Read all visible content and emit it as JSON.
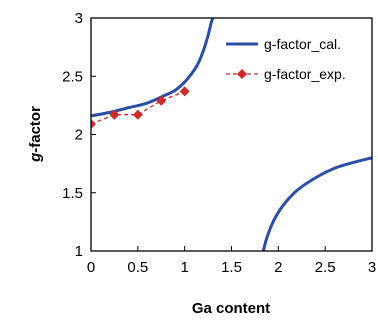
{
  "chart_data": {
    "type": "line",
    "xlabel": "Ga content",
    "ylabel_italic": "g",
    "ylabel_rest": "-factor",
    "xlim": [
      0,
      3
    ],
    "ylim": [
      1,
      3
    ],
    "x_ticks": [
      0,
      0.5,
      1,
      1.5,
      2,
      2.5,
      3
    ],
    "x_tick_labels": [
      "0",
      "0.5",
      "1",
      "1.5",
      "2",
      "2.5",
      "3"
    ],
    "y_ticks": [
      1,
      1.5,
      2,
      2.5,
      3
    ],
    "y_tick_labels": [
      "1",
      "1.5",
      "2",
      "2.5",
      "3"
    ],
    "grid": false,
    "legend_position": "top-right",
    "series": [
      {
        "name": "g-factor_cal.",
        "color": "#2a4ea6",
        "style": "solid",
        "segments": [
          [
            [
              0,
              2.16
            ],
            [
              0.2,
              2.19
            ],
            [
              0.4,
              2.23
            ],
            [
              0.6,
              2.27
            ],
            [
              0.8,
              2.34
            ],
            [
              0.9,
              2.38
            ],
            [
              1.0,
              2.45
            ],
            [
              1.1,
              2.55
            ],
            [
              1.15,
              2.62
            ],
            [
              1.2,
              2.72
            ],
            [
              1.25,
              2.85
            ],
            [
              1.28,
              2.95
            ],
            [
              1.3,
              3.0
            ]
          ],
          [
            [
              1.84,
              1.0
            ],
            [
              1.88,
              1.12
            ],
            [
              1.95,
              1.26
            ],
            [
              2.05,
              1.39
            ],
            [
              2.2,
              1.52
            ],
            [
              2.4,
              1.63
            ],
            [
              2.6,
              1.71
            ],
            [
              2.8,
              1.76
            ],
            [
              3.0,
              1.8
            ]
          ]
        ]
      },
      {
        "name": "g-factor_exp.",
        "color": "#cc2b2b",
        "style": "dashed",
        "marker": "diamond",
        "x": [
          0,
          0.25,
          0.5,
          0.75,
          1.0
        ],
        "y": [
          2.09,
          2.17,
          2.17,
          2.29,
          2.37
        ]
      }
    ]
  }
}
